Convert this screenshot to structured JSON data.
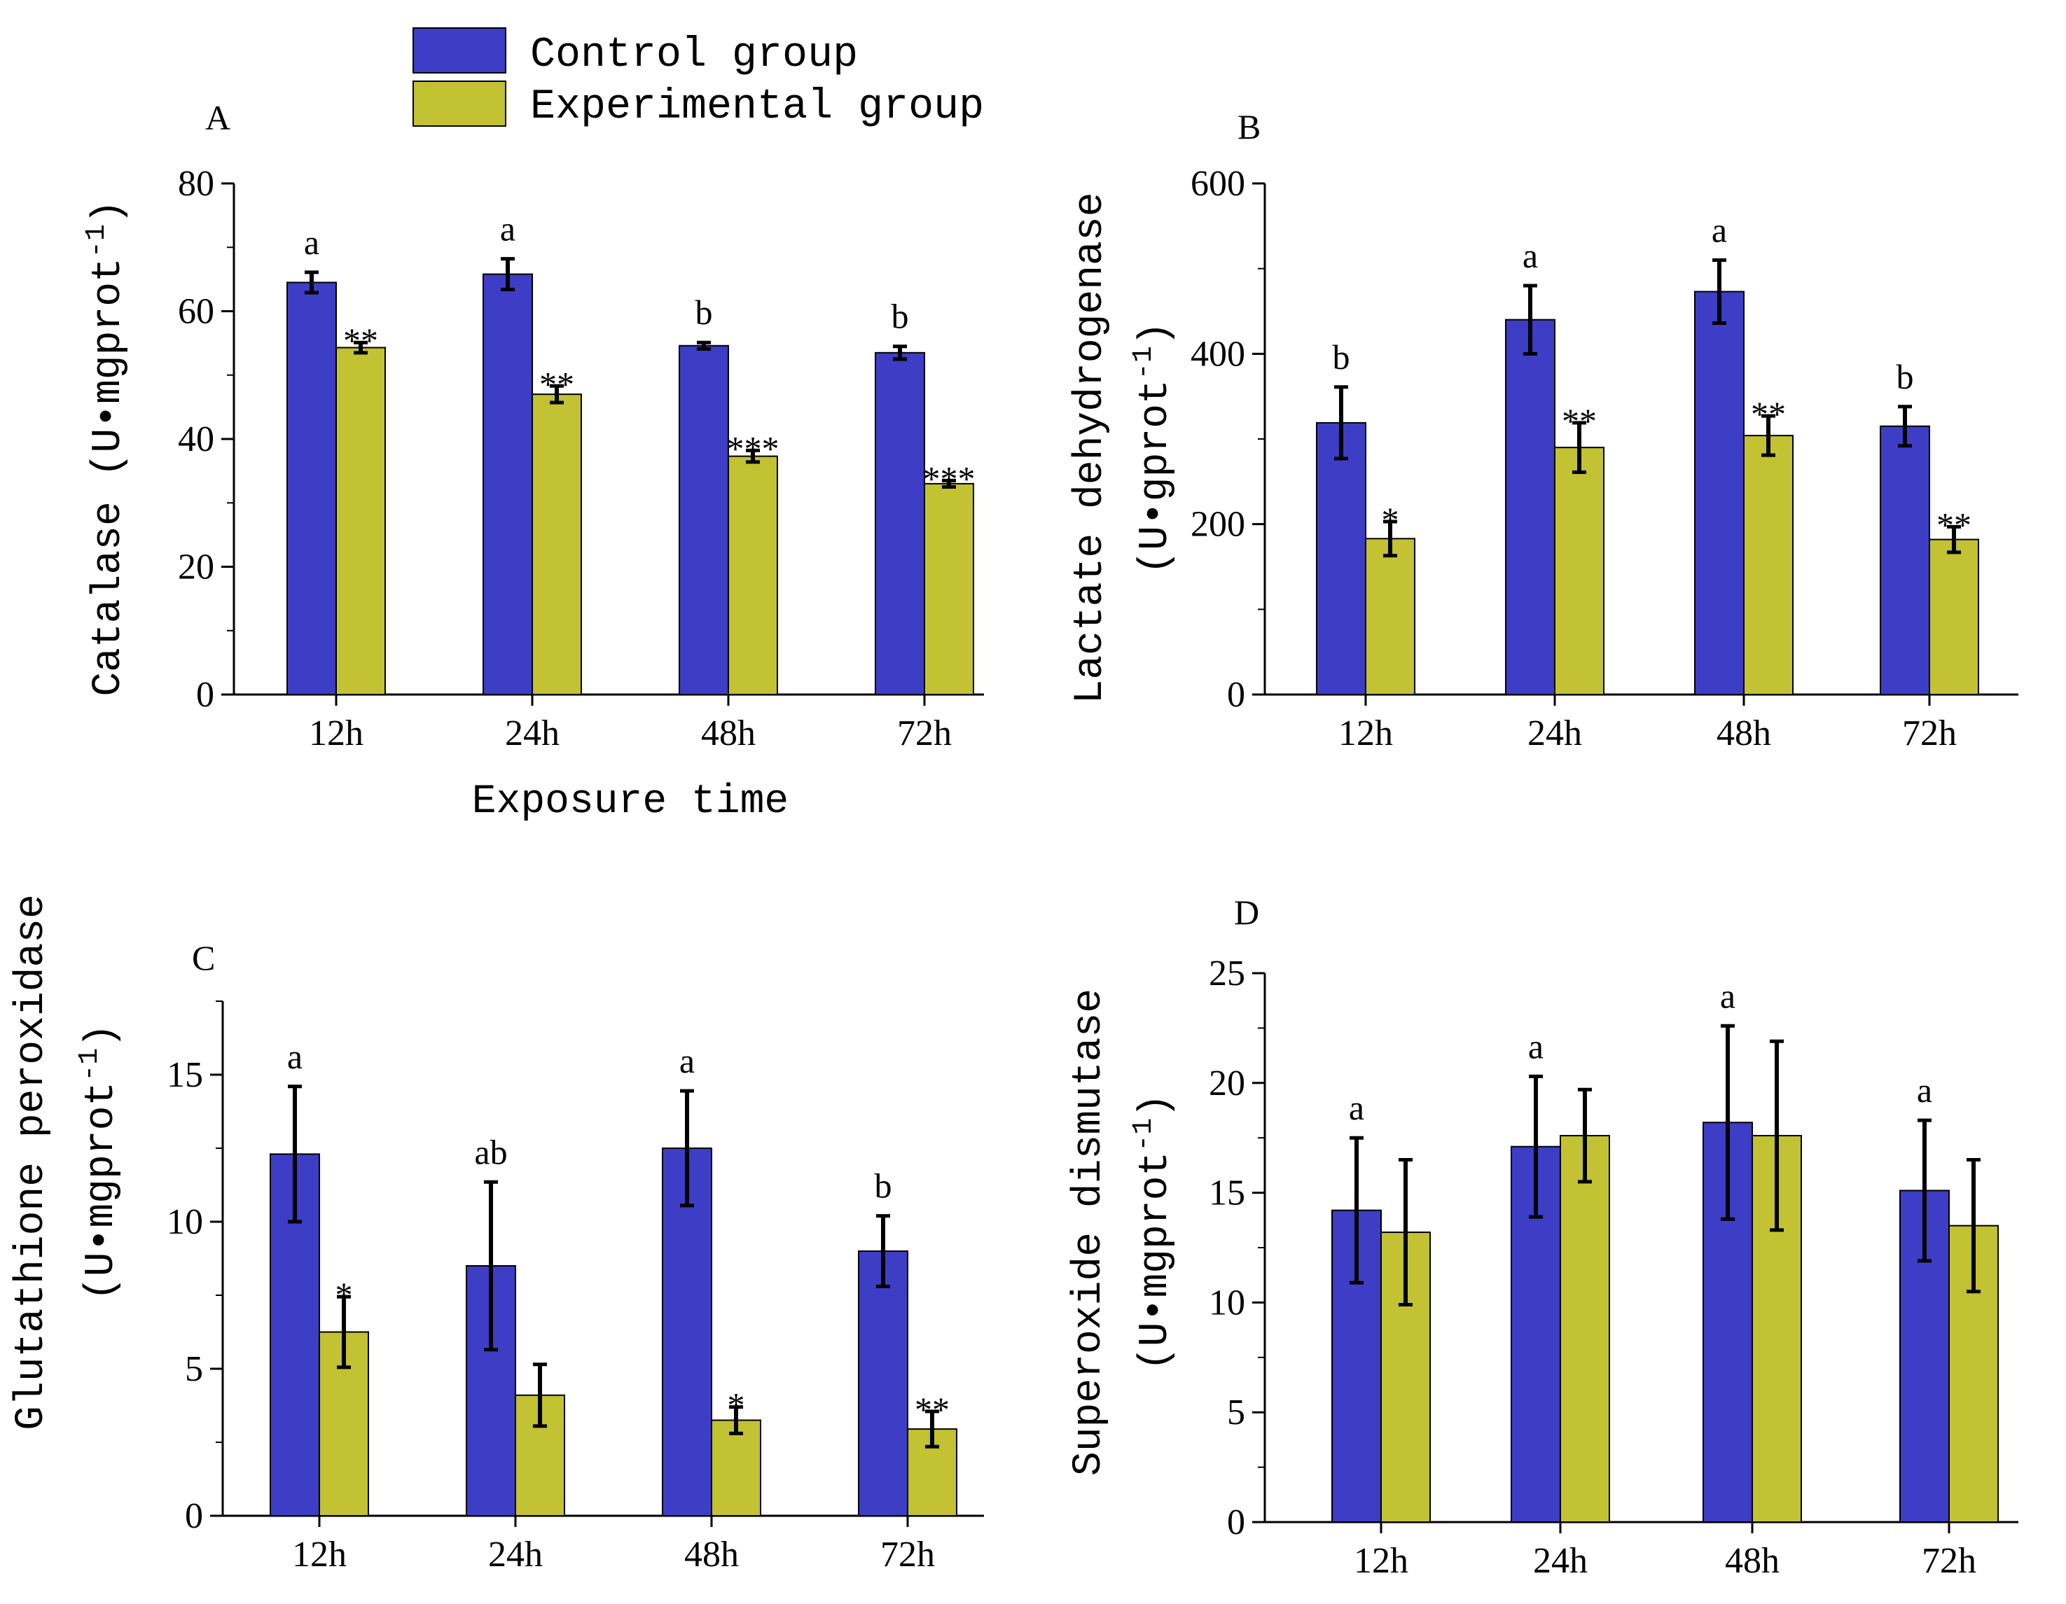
{
  "colors": {
    "control": "#3d3dc6",
    "experimental": "#c2c232",
    "axis": "#000000",
    "errorbar": "#000000"
  },
  "legend": {
    "control_label": "Control group",
    "experimental_label": "Experimental group"
  },
  "chart_data": [
    {
      "type": "bar",
      "panel": "A",
      "categories": [
        "12h",
        "24h",
        "48h",
        "72h"
      ],
      "ylim": [
        0,
        80
      ],
      "yticks": [
        0,
        20,
        40,
        60,
        80
      ],
      "xlabel": "Exposure time",
      "ylabel": "Catalase (U•mgprot",
      "ylabel_sup": "-1",
      "ylabel_close": ")",
      "ylabel_line2": "",
      "series": [
        {
          "name": "Control group",
          "values": [
            64.5,
            65.8,
            54.6,
            53.5
          ],
          "errors": [
            1.6,
            2.4,
            0.5,
            1.0
          ],
          "labels": [
            "a",
            "a",
            "b",
            "b"
          ]
        },
        {
          "name": "Experimental group",
          "values": [
            54.3,
            47.0,
            37.3,
            33.0
          ],
          "errors": [
            0.8,
            1.3,
            0.9,
            0.5
          ],
          "labels": [
            "**",
            "**",
            "***",
            "***"
          ]
        }
      ]
    },
    {
      "type": "bar",
      "panel": "B",
      "categories": [
        "12h",
        "24h",
        "48h",
        "72h"
      ],
      "ylim": [
        0,
        600
      ],
      "yticks": [
        0,
        200,
        400,
        600
      ],
      "xlabel": "",
      "ylabel": "Lactate dehydrogenase",
      "ylabel_line2": "(U•gprot",
      "ylabel_sup": "-1",
      "ylabel_close": ")",
      "series": [
        {
          "name": "Control group",
          "values": [
            319,
            440,
            473,
            315
          ],
          "errors": [
            42,
            40,
            37,
            23
          ],
          "labels": [
            "b",
            "a",
            "a",
            "b"
          ]
        },
        {
          "name": "Experimental group",
          "values": [
            183,
            290,
            304,
            182
          ],
          "errors": [
            20,
            29,
            23,
            15
          ],
          "labels": [
            "*",
            "**",
            "**",
            "**"
          ]
        }
      ]
    },
    {
      "type": "bar",
      "panel": "C",
      "categories": [
        "12h",
        "24h",
        "48h",
        "72h"
      ],
      "ylim": [
        0,
        17.5
      ],
      "yticks": [
        0,
        5,
        10,
        15
      ],
      "xlabel": "",
      "ylabel": "Glutathione peroxidase",
      "ylabel_line2": "(U•mgprot",
      "ylabel_sup": "-1",
      "ylabel_close": ")",
      "series": [
        {
          "name": "Control group",
          "values": [
            12.3,
            8.5,
            12.5,
            9.0
          ],
          "errors": [
            2.3,
            2.85,
            1.95,
            1.2
          ],
          "labels": [
            "a",
            "ab",
            "a",
            "b"
          ]
        },
        {
          "name": "Experimental group",
          "values": [
            6.25,
            4.1,
            3.25,
            2.95
          ],
          "errors": [
            1.2,
            1.05,
            0.45,
            0.6
          ],
          "labels": [
            "*",
            "",
            "*",
            "**"
          ]
        }
      ]
    },
    {
      "type": "bar",
      "panel": "D",
      "categories": [
        "12h",
        "24h",
        "48h",
        "72h"
      ],
      "ylim": [
        0,
        25
      ],
      "yticks": [
        0,
        5,
        10,
        15,
        20,
        25
      ],
      "xlabel": "",
      "ylabel": "Superoxide dismutase",
      "ylabel_line2": "(U•mgprot",
      "ylabel_sup": "-1",
      "ylabel_close": ")",
      "series": [
        {
          "name": "Control group",
          "values": [
            14.2,
            17.1,
            18.2,
            15.1
          ],
          "errors": [
            3.3,
            3.2,
            4.4,
            3.2
          ],
          "labels": [
            "a",
            "a",
            "a",
            "a"
          ]
        },
        {
          "name": "Experimental group",
          "values": [
            13.2,
            17.6,
            17.6,
            13.5
          ],
          "errors": [
            3.3,
            2.1,
            4.3,
            3.0
          ],
          "labels": [
            "",
            "",
            "",
            ""
          ]
        }
      ]
    }
  ]
}
